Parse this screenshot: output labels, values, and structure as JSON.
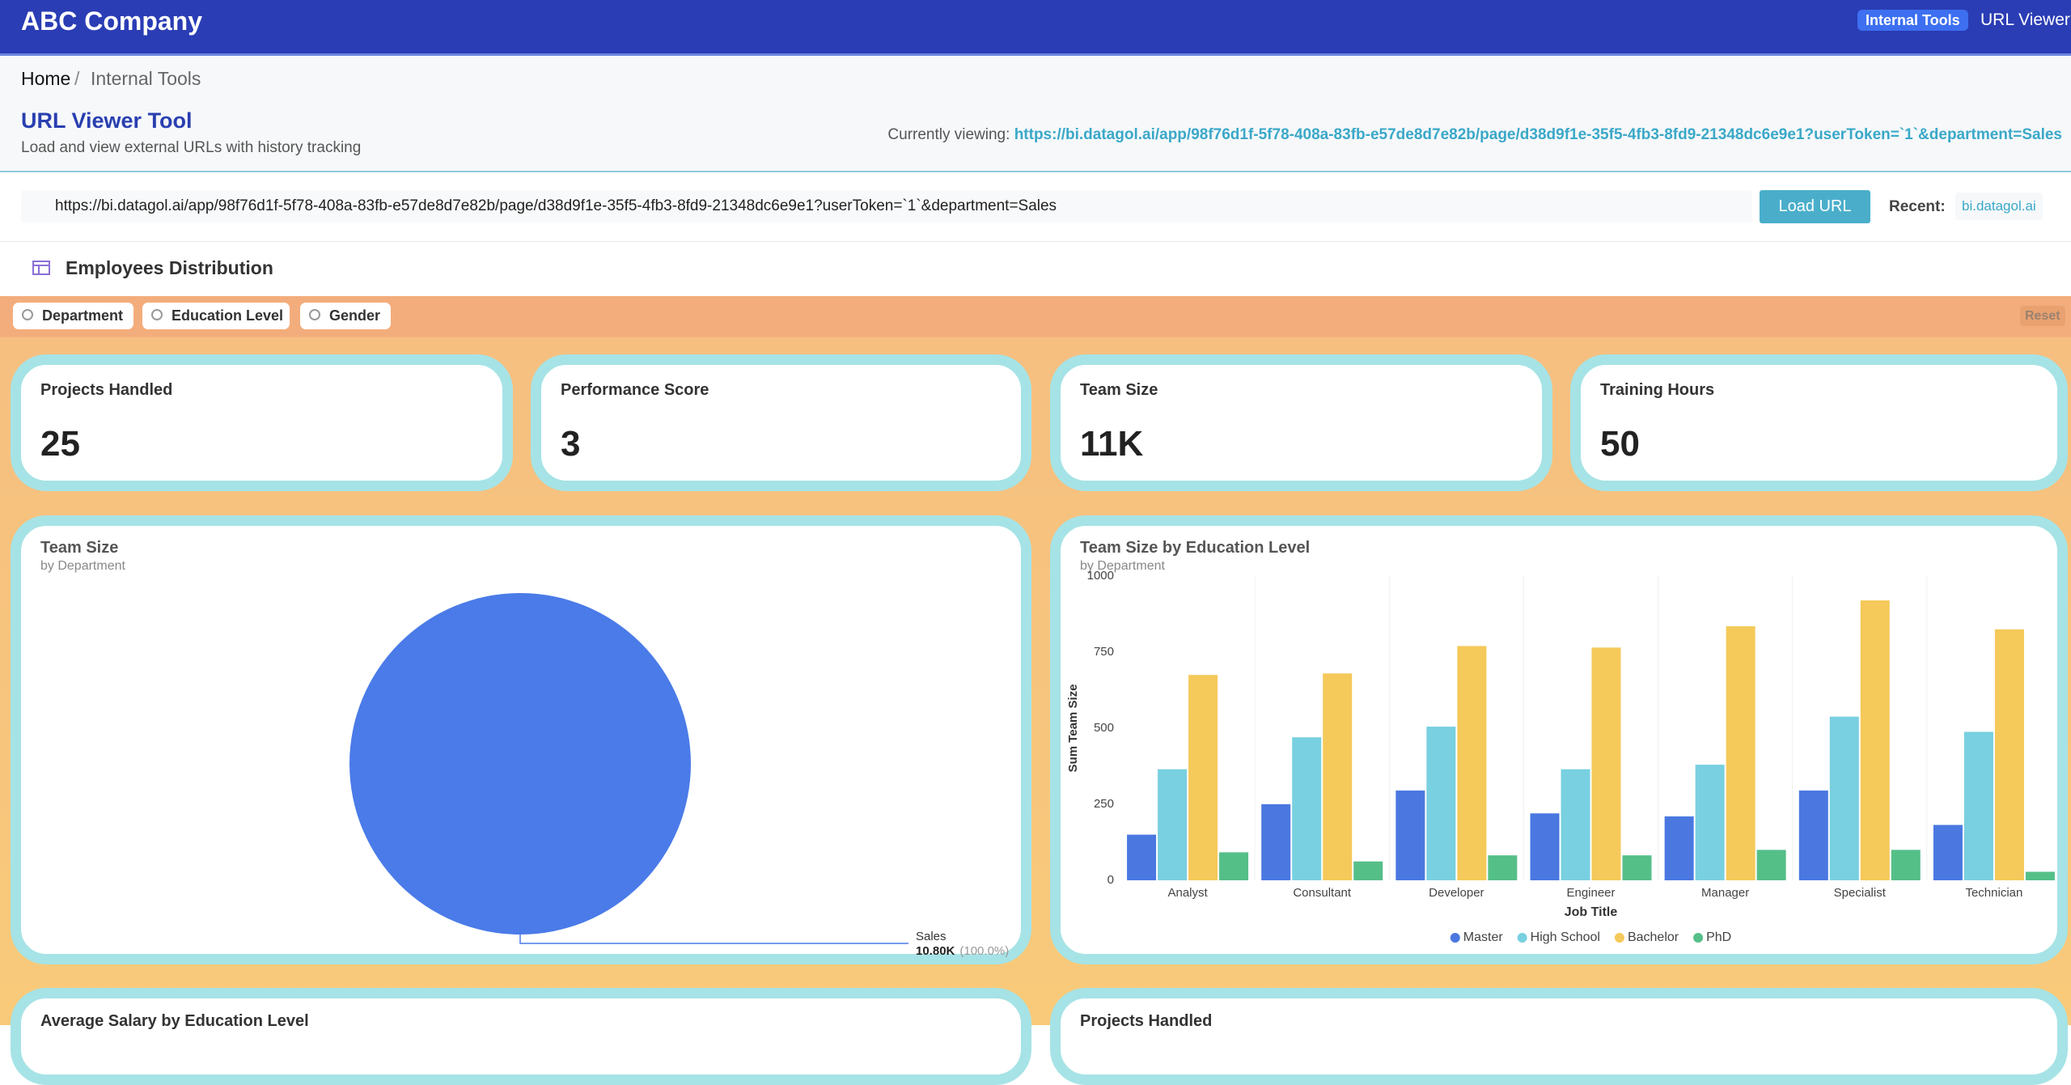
{
  "header": {
    "brand": "ABC Company",
    "badge": "Internal Tools",
    "link": "URL Viewer"
  },
  "breadcrumb": [
    "Home",
    "Internal Tools"
  ],
  "tool": {
    "title": "URL Viewer Tool",
    "subtitle": "Load and view external URLs with history tracking",
    "viewing_label": "Currently viewing:",
    "viewing_url": "https://bi.datagol.ai/app/98f76d1f-5f78-408a-83fb-e57de8d7e82b/page/d38d9f1e-35f5-4fb3-8fd9-21348dc6e9e1?userToken=`1`&department=Sales"
  },
  "url_bar": {
    "value": "https://bi.datagol.ai/app/98f76d1f-5f78-408a-83fb-e57de8d7e82b/page/d38d9f1e-35f5-4fb3-8fd9-21348dc6e9e1?userToken=`1`&department=Sales",
    "button": "Load URL",
    "recent_label": "Recent:",
    "recent": [
      "bi.datagol.ai"
    ]
  },
  "dashboard": {
    "title": "Employees Distribution",
    "filters": [
      "Department",
      "Education Level",
      "Gender"
    ],
    "reset": "Reset",
    "kpis": [
      {
        "label": "Projects Handled",
        "value": 25
      },
      {
        "label": "Performance Score",
        "value": 3
      },
      {
        "label": "Team Size",
        "value": "11K"
      },
      {
        "label": "Training Hours",
        "value": 50
      }
    ],
    "bottom_titles": [
      "Average Salary by Education Level",
      "Projects Handled"
    ]
  },
  "chart_data": [
    {
      "type": "pie",
      "title": "Team Size",
      "subtitle": "by Department",
      "categories": [
        "Sales"
      ],
      "values": [
        10800
      ],
      "value_labels": [
        "10.80K"
      ],
      "percent_labels": [
        "(100.0%)"
      ],
      "colors": [
        "#4a7be8"
      ]
    },
    {
      "type": "bar",
      "title": "Team Size by Education Level",
      "subtitle": "by Department",
      "xlabel": "Job Title",
      "ylabel": "Sum Team Size",
      "categories": [
        "Analyst",
        "Consultant",
        "Developer",
        "Engineer",
        "Manager",
        "Specialist",
        "Technician"
      ],
      "series": [
        {
          "name": "Master",
          "color": "#4a78e0",
          "values": [
            150,
            250,
            295,
            220,
            210,
            295,
            182
          ]
        },
        {
          "name": "High School",
          "color": "#78d0e0",
          "values": [
            365,
            470,
            505,
            365,
            380,
            538,
            488
          ]
        },
        {
          "name": "Bachelor",
          "color": "#f5c95a",
          "values": [
            675,
            680,
            770,
            765,
            835,
            920,
            825
          ]
        },
        {
          "name": "PhD",
          "color": "#55bf88",
          "values": [
            92,
            62,
            82,
            82,
            100,
            100,
            28
          ]
        }
      ],
      "ylim": [
        0,
        1000
      ],
      "yticks": [
        0,
        250,
        500,
        750,
        1000
      ],
      "grid": false,
      "legend": "bottom"
    }
  ]
}
